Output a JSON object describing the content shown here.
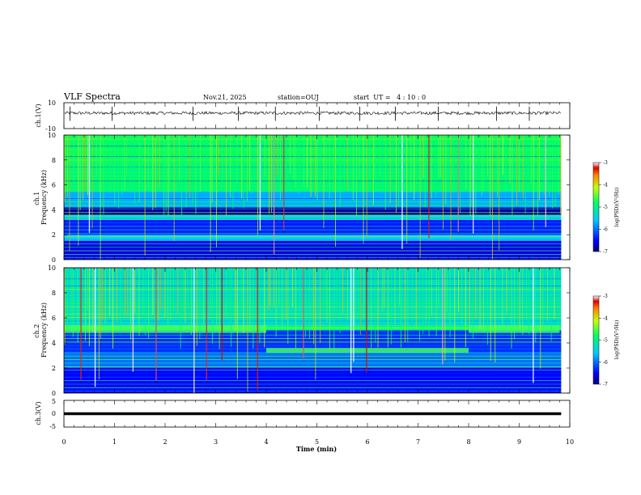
{
  "header": {
    "title": "VLF Spectra",
    "date": "Nov.21, 2025",
    "station": "station=OUJ",
    "start_ut": "start  UT =   4 : 10 : 0"
  },
  "chart_data": [
    {
      "type": "line",
      "panel": "ch1-waveform",
      "ylabel": "ch.1(V)",
      "ylim": [
        -10,
        10
      ],
      "yticks": [
        "10",
        "-10"
      ],
      "xlim": [
        0,
        10
      ],
      "baseline": 2,
      "noise_amplitude": 1.2,
      "spikes": [
        0.12,
        0.95,
        2.55,
        3.45,
        4.18,
        5.05,
        5.85,
        6.55,
        7.4,
        8.55,
        9.2
      ]
    },
    {
      "type": "heatmap",
      "panel": "ch1-spectrogram",
      "ylabel": "ch.1\nFrequency (kHz)",
      "xlim": [
        0,
        10
      ],
      "ylim": [
        0,
        10
      ],
      "yticks": [
        "0",
        "2",
        "4",
        "6",
        "8",
        "10"
      ],
      "colorbar": {
        "label": "log(PSD)(V²/Hz)",
        "range": [
          -7,
          -3
        ],
        "ticks": [
          "-3",
          "-4",
          "-5",
          "-6",
          "-7"
        ]
      },
      "band_kHz": [
        {
          "from": 0,
          "to": 1.5,
          "level": -6.6
        },
        {
          "from": 1.5,
          "to": 2.0,
          "level": -5.6
        },
        {
          "from": 2.0,
          "to": 3.2,
          "level": -6.4
        },
        {
          "from": 3.2,
          "to": 3.6,
          "level": -5.5
        },
        {
          "from": 3.6,
          "to": 4.2,
          "level": -6.9
        },
        {
          "from": 4.2,
          "to": 5.5,
          "level": -5.7
        },
        {
          "from": 5.5,
          "to": 10,
          "level": -4.8
        }
      ]
    },
    {
      "type": "heatmap",
      "panel": "ch2-spectrogram",
      "ylabel": "ch.2\nFrequency (kHz)",
      "xlim": [
        0,
        10
      ],
      "ylim": [
        0,
        10
      ],
      "yticks": [
        "0",
        "2",
        "4",
        "6",
        "8",
        "10"
      ],
      "colorbar": {
        "label": "log(PSD)(V²/Hz)",
        "range": [
          -7,
          -3
        ],
        "ticks": [
          "-3",
          "-4",
          "-5",
          "-6",
          "-7"
        ]
      },
      "band_kHz": [
        {
          "from": 0,
          "to": 2.0,
          "level": -6.5
        },
        {
          "from": 2.0,
          "to": 3.2,
          "level": -6.0
        },
        {
          "from": 3.2,
          "to": 5.0,
          "level": -6.3
        },
        {
          "from": 5.0,
          "to": 5.4,
          "level": -4.9
        },
        {
          "from": 5.4,
          "to": 10,
          "level": -5.3
        }
      ],
      "segments_min": [
        {
          "from": 0,
          "to": 4,
          "band_kHz": [
            4.8,
            5.4
          ]
        },
        {
          "from": 4,
          "to": 8,
          "band_kHz": [
            3.2,
            3.6
          ]
        },
        {
          "from": 8,
          "to": 9.8,
          "band_kHz": [
            4.8,
            5.4
          ]
        }
      ]
    },
    {
      "type": "line",
      "panel": "ch3-waveform",
      "ylabel": "ch.3(V)",
      "ylim": [
        -5,
        5
      ],
      "yticks": [
        "5",
        "0",
        "-5"
      ],
      "xlim": [
        0,
        10
      ],
      "value": 0,
      "xlabel": "Time (min)",
      "xticks": [
        "0",
        "1",
        "2",
        "3",
        "4",
        "5",
        "6",
        "7",
        "8",
        "9",
        "10"
      ]
    }
  ]
}
